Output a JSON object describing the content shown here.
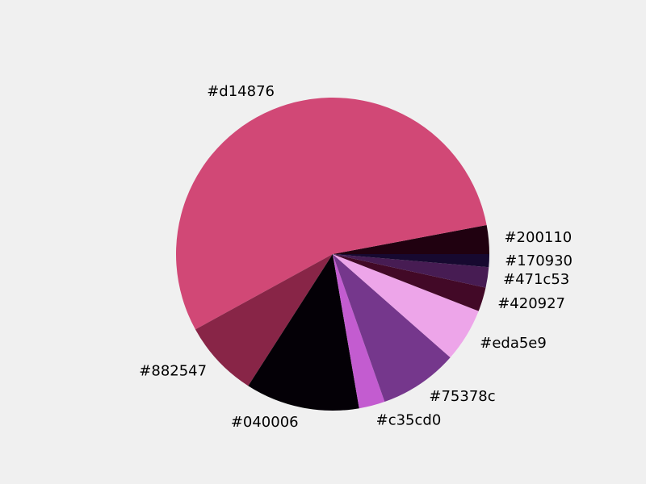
{
  "chart_data": {
    "type": "pie",
    "title": "",
    "start_angle_deg": 0,
    "direction": "counterclockwise",
    "slices": [
      {
        "label": "#200110",
        "value": 3.1,
        "color": "#200110"
      },
      {
        "label": "#d14876",
        "value": 57.5,
        "color": "#d14876"
      },
      {
        "label": "#882547",
        "value": 8.3,
        "color": "#882547"
      },
      {
        "label": "#040006",
        "value": 12.3,
        "color": "#040006"
      },
      {
        "label": "#c35cd0",
        "value": 2.8,
        "color": "#c35cd0"
      },
      {
        "label": "#75378c",
        "value": 8.5,
        "color": "#75378c"
      },
      {
        "label": "#eda5e9",
        "value": 5.8,
        "color": "#eda5e9"
      },
      {
        "label": "#420927",
        "value": 2.6,
        "color": "#420927"
      },
      {
        "label": "#471c53",
        "value": 2.2,
        "color": "#471c53"
      },
      {
        "label": "#170930",
        "value": 1.4,
        "color": "#170930"
      }
    ]
  }
}
